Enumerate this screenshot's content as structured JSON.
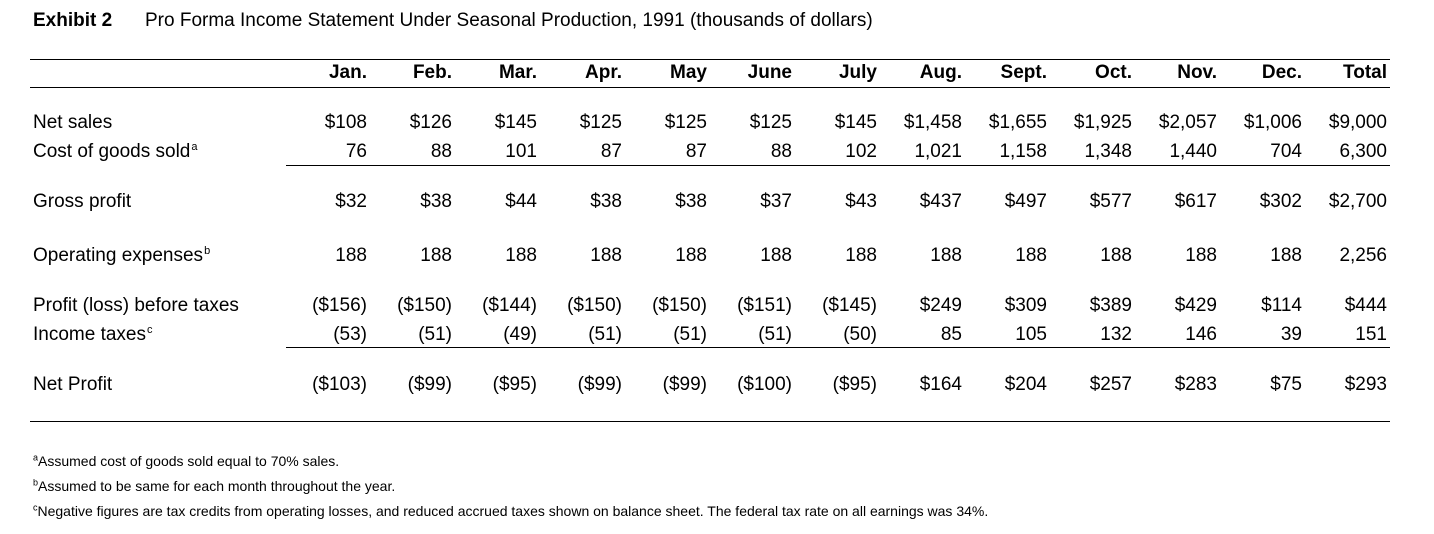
{
  "exhibit": {
    "label": "Exhibit 2",
    "title": "Pro Forma Income Statement Under Seasonal Production, 1991 (thousands of dollars)"
  },
  "columns": [
    "Jan.",
    "Feb.",
    "Mar.",
    "Apr.",
    "May",
    "June",
    "July",
    "Aug.",
    "Sept.",
    "Oct.",
    "Nov.",
    "Dec.",
    "Total"
  ],
  "rows": [
    {
      "label": "Net sales",
      "note": "",
      "values": [
        "$108",
        "$126",
        "$145",
        "$125",
        "$125",
        "$125",
        "$145",
        "$1,458",
        "$1,655",
        "$1,925",
        "$2,057",
        "$1,006",
        "$9,000"
      ]
    },
    {
      "label": "Cost of goods sold",
      "note": "a",
      "values": [
        "76",
        "88",
        "101",
        "87",
        "87",
        "88",
        "102",
        "1,021",
        "1,158",
        "1,348",
        "1,440",
        "704",
        "6,300"
      ]
    },
    {
      "label": "Gross profit",
      "note": "",
      "values": [
        "$32",
        "$38",
        "$44",
        "$38",
        "$38",
        "$37",
        "$43",
        "$437",
        "$497",
        "$577",
        "$617",
        "$302",
        "$2,700"
      ]
    },
    {
      "label": "Operating expenses",
      "note": "b",
      "values": [
        "188",
        "188",
        "188",
        "188",
        "188",
        "188",
        "188",
        "188",
        "188",
        "188",
        "188",
        "188",
        "2,256"
      ]
    },
    {
      "label": "Profit (loss) before taxes",
      "note": "",
      "values": [
        "($156)",
        "($150)",
        "($144)",
        "($150)",
        "($150)",
        "($151)",
        "($145)",
        "$249",
        "$309",
        "$389",
        "$429",
        "$114",
        "$444"
      ]
    },
    {
      "label": "Income taxes",
      "note": "c",
      "values": [
        "(53)",
        "(51)",
        "(49)",
        "(51)",
        "(51)",
        "(51)",
        "(50)",
        "85",
        "105",
        "132",
        "146",
        "39",
        "151"
      ]
    },
    {
      "label": "Net Profit",
      "note": "",
      "values": [
        "($103)",
        "($99)",
        "($95)",
        "($99)",
        "($99)",
        "($100)",
        "($95)",
        "$164",
        "$204",
        "$257",
        "$283",
        "$75",
        "$293"
      ]
    }
  ],
  "footnotes": [
    {
      "mark": "a",
      "text": "Assumed cost of goods sold equal to 70% sales."
    },
    {
      "mark": "b",
      "text": "Assumed to be same for each month throughout the year."
    },
    {
      "mark": "c",
      "text": "Negative figures are tax credits from operating losses, and reduced accrued taxes shown on balance sheet. The federal tax rate on all earnings was 34%."
    }
  ]
}
